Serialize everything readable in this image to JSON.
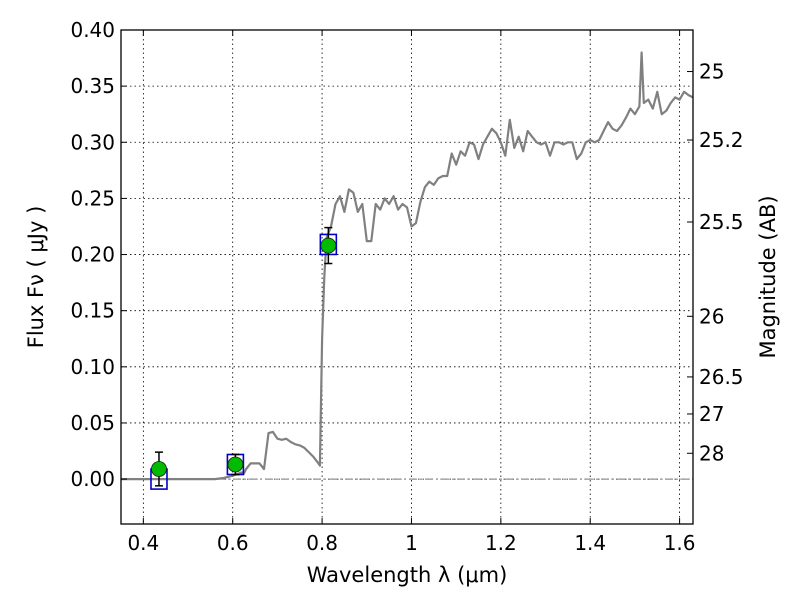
{
  "chart_data": {
    "type": "line",
    "xlabel": "Wavelength  λ (μm)",
    "ylabel": "Flux  Fν  ( μJy )",
    "ylabel_right": "Magnitude (AB)",
    "xlim": [
      0.35,
      1.63
    ],
    "ylim": [
      -0.04,
      0.4
    ],
    "grid": true,
    "x_ticks": [
      0.4,
      0.6,
      0.8,
      1.0,
      1.2,
      1.4,
      1.6
    ],
    "x_tick_labels": [
      "0.4",
      "0.6",
      "0.8",
      "1",
      "1.2",
      "1.4",
      "1.6"
    ],
    "y_ticks": [
      0.0,
      0.05,
      0.1,
      0.15,
      0.2,
      0.25,
      0.3,
      0.35,
      0.4
    ],
    "y_tick_labels": [
      "0.00",
      "0.05",
      "0.10",
      "0.15",
      "0.20",
      "0.25",
      "0.30",
      "0.35",
      "0.40"
    ],
    "right_axis_ticks": [
      {
        "label": "25",
        "flux": 0.363
      },
      {
        "label": "25.2",
        "flux": 0.302
      },
      {
        "label": "25.5",
        "flux": 0.229
      },
      {
        "label": "26",
        "flux": 0.145
      },
      {
        "label": "26.5",
        "flux": 0.091
      },
      {
        "label": "27",
        "flux": 0.058
      },
      {
        "label": "28",
        "flux": 0.023
      }
    ],
    "zero_line": 0.0,
    "colors": {
      "model": "#808080",
      "observed": "#00bb00",
      "observed_marker_edge": "#1a1a1a",
      "model_band": "#0000cc",
      "error_bar": "#000000",
      "zero_line": "#777777"
    },
    "series": [
      {
        "kind": "model_spectrum",
        "x": [
          0.35,
          0.5,
          0.56,
          0.58,
          0.6,
          0.62,
          0.625,
          0.63,
          0.64,
          0.66,
          0.67,
          0.68,
          0.69,
          0.7,
          0.71,
          0.72,
          0.73,
          0.74,
          0.75,
          0.76,
          0.77,
          0.78,
          0.79,
          0.795,
          0.8,
          0.805,
          0.81,
          0.82,
          0.83,
          0.84,
          0.85,
          0.86,
          0.87,
          0.88,
          0.89,
          0.9,
          0.91,
          0.92,
          0.93,
          0.94,
          0.95,
          0.96,
          0.97,
          0.98,
          0.99,
          1.0,
          1.01,
          1.02,
          1.03,
          1.04,
          1.05,
          1.06,
          1.07,
          1.08,
          1.09,
          1.1,
          1.11,
          1.12,
          1.13,
          1.14,
          1.15,
          1.16,
          1.17,
          1.18,
          1.19,
          1.2,
          1.21,
          1.22,
          1.23,
          1.24,
          1.25,
          1.26,
          1.27,
          1.28,
          1.29,
          1.3,
          1.31,
          1.32,
          1.33,
          1.34,
          1.35,
          1.36,
          1.37,
          1.38,
          1.39,
          1.4,
          1.41,
          1.42,
          1.43,
          1.44,
          1.45,
          1.46,
          1.47,
          1.48,
          1.49,
          1.5,
          1.51,
          1.515,
          1.52,
          1.53,
          1.54,
          1.55,
          1.56,
          1.57,
          1.58,
          1.59,
          1.6,
          1.61,
          1.62,
          1.63
        ],
        "y": [
          0.0,
          0.0,
          0.0,
          0.001,
          0.003,
          0.006,
          0.005,
          0.009,
          0.014,
          0.014,
          0.009,
          0.041,
          0.042,
          0.036,
          0.035,
          0.036,
          0.033,
          0.031,
          0.03,
          0.028,
          0.024,
          0.02,
          0.015,
          0.012,
          0.125,
          0.18,
          0.215,
          0.225,
          0.245,
          0.252,
          0.238,
          0.258,
          0.255,
          0.238,
          0.245,
          0.212,
          0.212,
          0.245,
          0.24,
          0.25,
          0.245,
          0.252,
          0.24,
          0.245,
          0.242,
          0.225,
          0.228,
          0.247,
          0.26,
          0.265,
          0.262,
          0.268,
          0.27,
          0.27,
          0.29,
          0.28,
          0.292,
          0.288,
          0.3,
          0.298,
          0.285,
          0.298,
          0.305,
          0.312,
          0.308,
          0.3,
          0.288,
          0.32,
          0.295,
          0.305,
          0.292,
          0.31,
          0.305,
          0.3,
          0.298,
          0.3,
          0.288,
          0.3,
          0.3,
          0.298,
          0.3,
          0.3,
          0.285,
          0.29,
          0.3,
          0.302,
          0.3,
          0.302,
          0.31,
          0.318,
          0.312,
          0.31,
          0.315,
          0.322,
          0.33,
          0.325,
          0.332,
          0.38,
          0.335,
          0.338,
          0.33,
          0.345,
          0.325,
          0.328,
          0.335,
          0.34,
          0.338,
          0.345,
          0.342,
          0.34
        ]
      },
      {
        "kind": "model_band_fluxes",
        "x": [
          0.435,
          0.606,
          0.814
        ],
        "y": [
          0.0,
          0.013,
          0.209
        ]
      },
      {
        "kind": "observed_photometry",
        "x": [
          0.435,
          0.606,
          0.814
        ],
        "y": [
          0.009,
          0.013,
          0.208
        ],
        "yerr": [
          0.015,
          0.009,
          0.016
        ]
      }
    ]
  }
}
